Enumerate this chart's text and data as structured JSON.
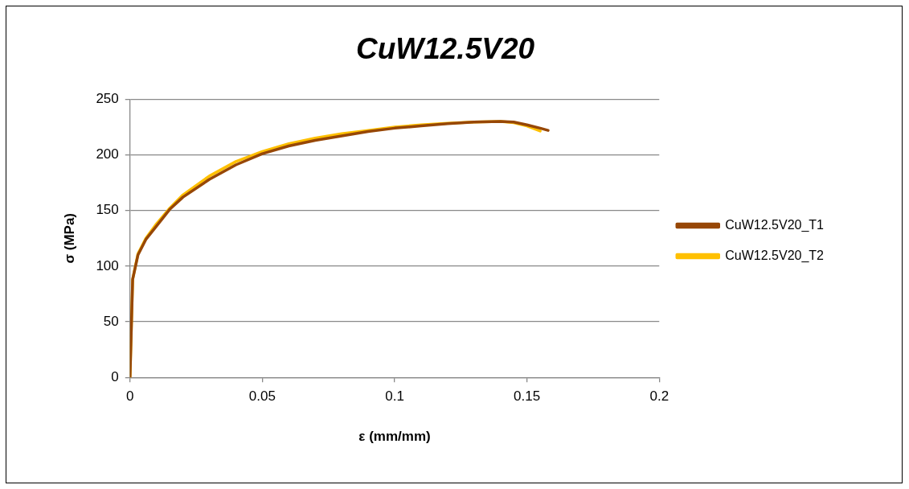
{
  "chart_data": {
    "type": "line",
    "title": "CuW12.5V20",
    "xlabel": "ε (mm/mm)",
    "ylabel": "σ (MPa)",
    "xlim": [
      0,
      0.2
    ],
    "xticks": [
      0,
      0.05,
      0.1,
      0.15,
      0.2
    ],
    "ylim": [
      0,
      250
    ],
    "yticks": [
      0,
      50,
      100,
      150,
      200,
      250
    ],
    "grid": "y",
    "legend": "right",
    "marker": "none",
    "line_style": "solid",
    "series": [
      {
        "name": "CuW12.5V20_T1",
        "color": "#974706",
        "x": [
          0,
          0.001,
          0.003,
          0.006,
          0.01,
          0.015,
          0.02,
          0.03,
          0.04,
          0.05,
          0.06,
          0.07,
          0.08,
          0.09,
          0.1,
          0.11,
          0.12,
          0.13,
          0.14,
          0.145,
          0.15,
          0.155,
          0.158
        ],
        "values": [
          0,
          88,
          110,
          124,
          136,
          151,
          162,
          178,
          191,
          201,
          208,
          213,
          217,
          221,
          224,
          226,
          228,
          229.5,
          230,
          229.5,
          227,
          224,
          222
        ]
      },
      {
        "name": "CuW12.5V20_T2",
        "color": "#ffc000",
        "x": [
          0,
          0.001,
          0.003,
          0.006,
          0.01,
          0.015,
          0.02,
          0.03,
          0.04,
          0.05,
          0.06,
          0.07,
          0.08,
          0.09,
          0.1,
          0.11,
          0.12,
          0.13,
          0.14,
          0.145,
          0.15,
          0.155
        ],
        "values": [
          0,
          88,
          111,
          125,
          138,
          152,
          164,
          181,
          194,
          203,
          210,
          215,
          219,
          222,
          225,
          227,
          228.5,
          229.5,
          230,
          229,
          226,
          221.5
        ]
      }
    ]
  }
}
